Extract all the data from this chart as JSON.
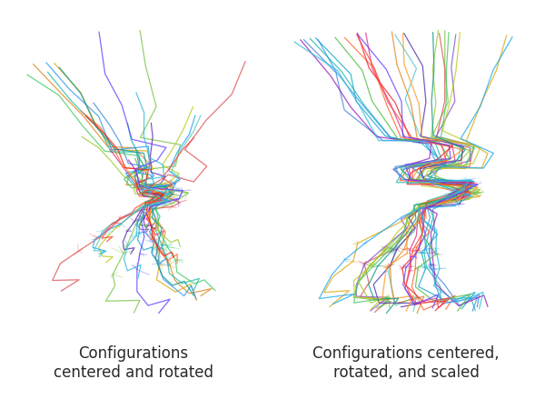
{
  "title_left": "Configurations\ncentered and rotated",
  "title_right": "Configurations centered,\nrotated, and scaled",
  "background_color": "#ffffff",
  "text_color": "#2a2a2a",
  "title_fontsize": 12,
  "n_configs": 25,
  "seed": 7,
  "colors": [
    "#5bc8c8",
    "#7dc44a",
    "#e05555",
    "#8855cc",
    "#4488dd",
    "#dd8822",
    "#22bbaa",
    "#ddaa11",
    "#44cc66",
    "#dd3388",
    "#11aacc",
    "#99cc33",
    "#ff6633",
    "#5533aa",
    "#3399ee",
    "#ff9922",
    "#119988",
    "#bbcc22",
    "#ee2222",
    "#9922bb",
    "#22aaee",
    "#55bb44",
    "#ff4444",
    "#6644ff",
    "#33bbdd",
    "#55ee99",
    "#ff7700",
    "#cc00ee",
    "#00ddff",
    "#88ee00"
  ]
}
